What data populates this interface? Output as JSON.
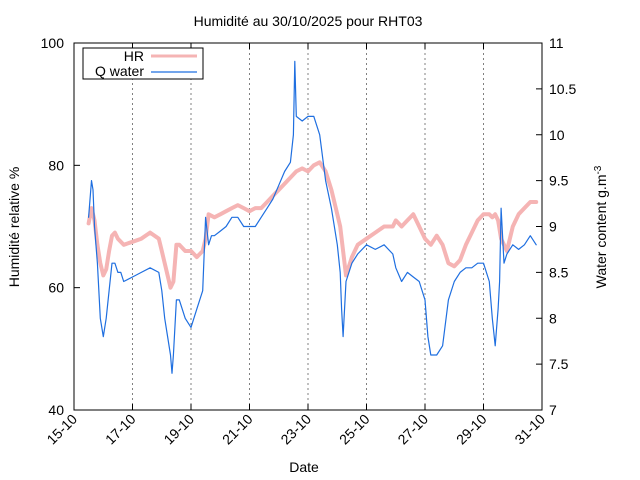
{
  "chart_data": {
    "type": "line",
    "title": "Humidité au 30/10/2025 pour RHT03",
    "xlabel": "Date",
    "ylabel": "Humidité relative %",
    "y2label_main": "Water content g.m",
    "y2label_sup": "-3",
    "xlim": [
      15,
      31
    ],
    "ylim": [
      40,
      100
    ],
    "y2lim": [
      7,
      11
    ],
    "x_ticks": [
      15,
      17,
      19,
      21,
      23,
      25,
      27,
      29,
      31
    ],
    "x_tick_labels": [
      "15-10",
      "17-10",
      "19-10",
      "21-10",
      "23-10",
      "25-10",
      "27-10",
      "29-10",
      "31-10"
    ],
    "y_ticks": [
      40,
      60,
      80,
      100
    ],
    "y_tick_labels": [
      "40",
      "60",
      "80",
      "100"
    ],
    "y2_ticks": [
      7,
      7.5,
      8,
      8.5,
      9,
      9.5,
      10,
      10.5,
      11
    ],
    "y2_tick_labels": [
      "7",
      "7.5",
      "8",
      "8.5",
      "9",
      "9.5",
      "10",
      "10.5",
      "11"
    ],
    "grid": "vertical dashed at x ticks",
    "legend_position": "top-left",
    "series": [
      {
        "name": "HR",
        "axis": "left",
        "color": "#f5b4b4",
        "x": [
          15.5,
          15.6,
          15.7,
          15.8,
          15.9,
          16.0,
          16.1,
          16.2,
          16.3,
          16.4,
          16.5,
          16.7,
          17.0,
          17.3,
          17.6,
          17.9,
          18.0,
          18.1,
          18.2,
          18.3,
          18.4,
          18.5,
          18.6,
          18.8,
          19.0,
          19.2,
          19.4,
          19.5,
          19.6,
          19.8,
          20.0,
          20.2,
          20.4,
          20.6,
          20.8,
          21.0,
          21.2,
          21.4,
          21.6,
          21.8,
          22.0,
          22.2,
          22.4,
          22.6,
          22.8,
          23.0,
          23.2,
          23.4,
          23.6,
          23.8,
          24.0,
          24.1,
          24.2,
          24.3,
          24.5,
          24.7,
          25.0,
          25.3,
          25.6,
          25.9,
          26.0,
          26.2,
          26.4,
          26.6,
          26.8,
          27.0,
          27.2,
          27.4,
          27.6,
          27.8,
          28.0,
          28.2,
          28.4,
          28.6,
          28.8,
          29.0,
          29.2,
          29.3,
          29.4,
          29.5,
          29.6,
          29.8,
          30.0,
          30.2,
          30.4,
          30.6,
          30.8
        ],
        "y": [
          70.5,
          73,
          71,
          67,
          64,
          62,
          63,
          66,
          68.5,
          69,
          68,
          67,
          67.5,
          68,
          69,
          68,
          66,
          64,
          62,
          60,
          61,
          67,
          67,
          66,
          66,
          65,
          66,
          68,
          72,
          71.5,
          72,
          72.5,
          73,
          73.5,
          73,
          72.5,
          73,
          73,
          74,
          75,
          76,
          77,
          78,
          79,
          79.5,
          79,
          80,
          80.5,
          79,
          76,
          72,
          70,
          66,
          62,
          65,
          67,
          68,
          69,
          70,
          70,
          71,
          70,
          71,
          72,
          70,
          68,
          67,
          68.5,
          67,
          64,
          63.5,
          64.5,
          67,
          69,
          71,
          72,
          72,
          71.5,
          72,
          71,
          68,
          66,
          70,
          72,
          73,
          74,
          74
        ]
      },
      {
        "name": "Q water",
        "axis": "right",
        "color": "#1f6fe0",
        "x": [
          15.5,
          15.6,
          15.65,
          15.7,
          15.8,
          15.9,
          16.0,
          16.1,
          16.2,
          16.3,
          16.4,
          16.5,
          16.6,
          16.7,
          17.0,
          17.3,
          17.6,
          17.9,
          18.0,
          18.1,
          18.2,
          18.3,
          18.35,
          18.4,
          18.5,
          18.6,
          18.8,
          19.0,
          19.2,
          19.4,
          19.5,
          19.6,
          19.7,
          19.8,
          20.0,
          20.2,
          20.4,
          20.6,
          20.8,
          21.0,
          21.2,
          21.4,
          21.6,
          21.8,
          22.0,
          22.2,
          22.4,
          22.5,
          22.55,
          22.6,
          22.8,
          23.0,
          23.2,
          23.4,
          23.6,
          23.8,
          24.0,
          24.1,
          24.15,
          24.2,
          24.3,
          24.5,
          24.7,
          25.0,
          25.3,
          25.6,
          25.9,
          26.0,
          26.2,
          26.4,
          26.6,
          26.8,
          27.0,
          27.1,
          27.2,
          27.4,
          27.6,
          27.8,
          28.0,
          28.2,
          28.4,
          28.6,
          28.8,
          29.0,
          29.2,
          29.3,
          29.4,
          29.5,
          29.55,
          29.6,
          29.7,
          29.8,
          30.0,
          30.2,
          30.4,
          30.6,
          30.8
        ],
        "y": [
          9.1,
          9.5,
          9.4,
          9.0,
          8.6,
          8.0,
          7.8,
          8.0,
          8.3,
          8.6,
          8.6,
          8.5,
          8.5,
          8.4,
          8.45,
          8.5,
          8.55,
          8.5,
          8.3,
          8.0,
          7.8,
          7.6,
          7.4,
          7.6,
          8.2,
          8.2,
          8.0,
          7.9,
          8.1,
          8.3,
          9.1,
          8.8,
          8.9,
          8.9,
          8.95,
          9.0,
          9.1,
          9.1,
          9.0,
          9.0,
          9.0,
          9.1,
          9.2,
          9.3,
          9.45,
          9.6,
          9.7,
          10.0,
          10.8,
          10.2,
          10.15,
          10.2,
          10.2,
          10.0,
          9.5,
          9.2,
          8.8,
          8.5,
          8.1,
          7.8,
          8.4,
          8.6,
          8.7,
          8.8,
          8.75,
          8.8,
          8.7,
          8.55,
          8.4,
          8.5,
          8.45,
          8.4,
          8.2,
          7.8,
          7.6,
          7.6,
          7.7,
          8.2,
          8.4,
          8.5,
          8.55,
          8.55,
          8.6,
          8.6,
          8.4,
          8.0,
          7.7,
          8.1,
          8.4,
          9.2,
          8.6,
          8.7,
          8.8,
          8.75,
          8.8,
          8.9,
          8.8
        ]
      }
    ]
  }
}
